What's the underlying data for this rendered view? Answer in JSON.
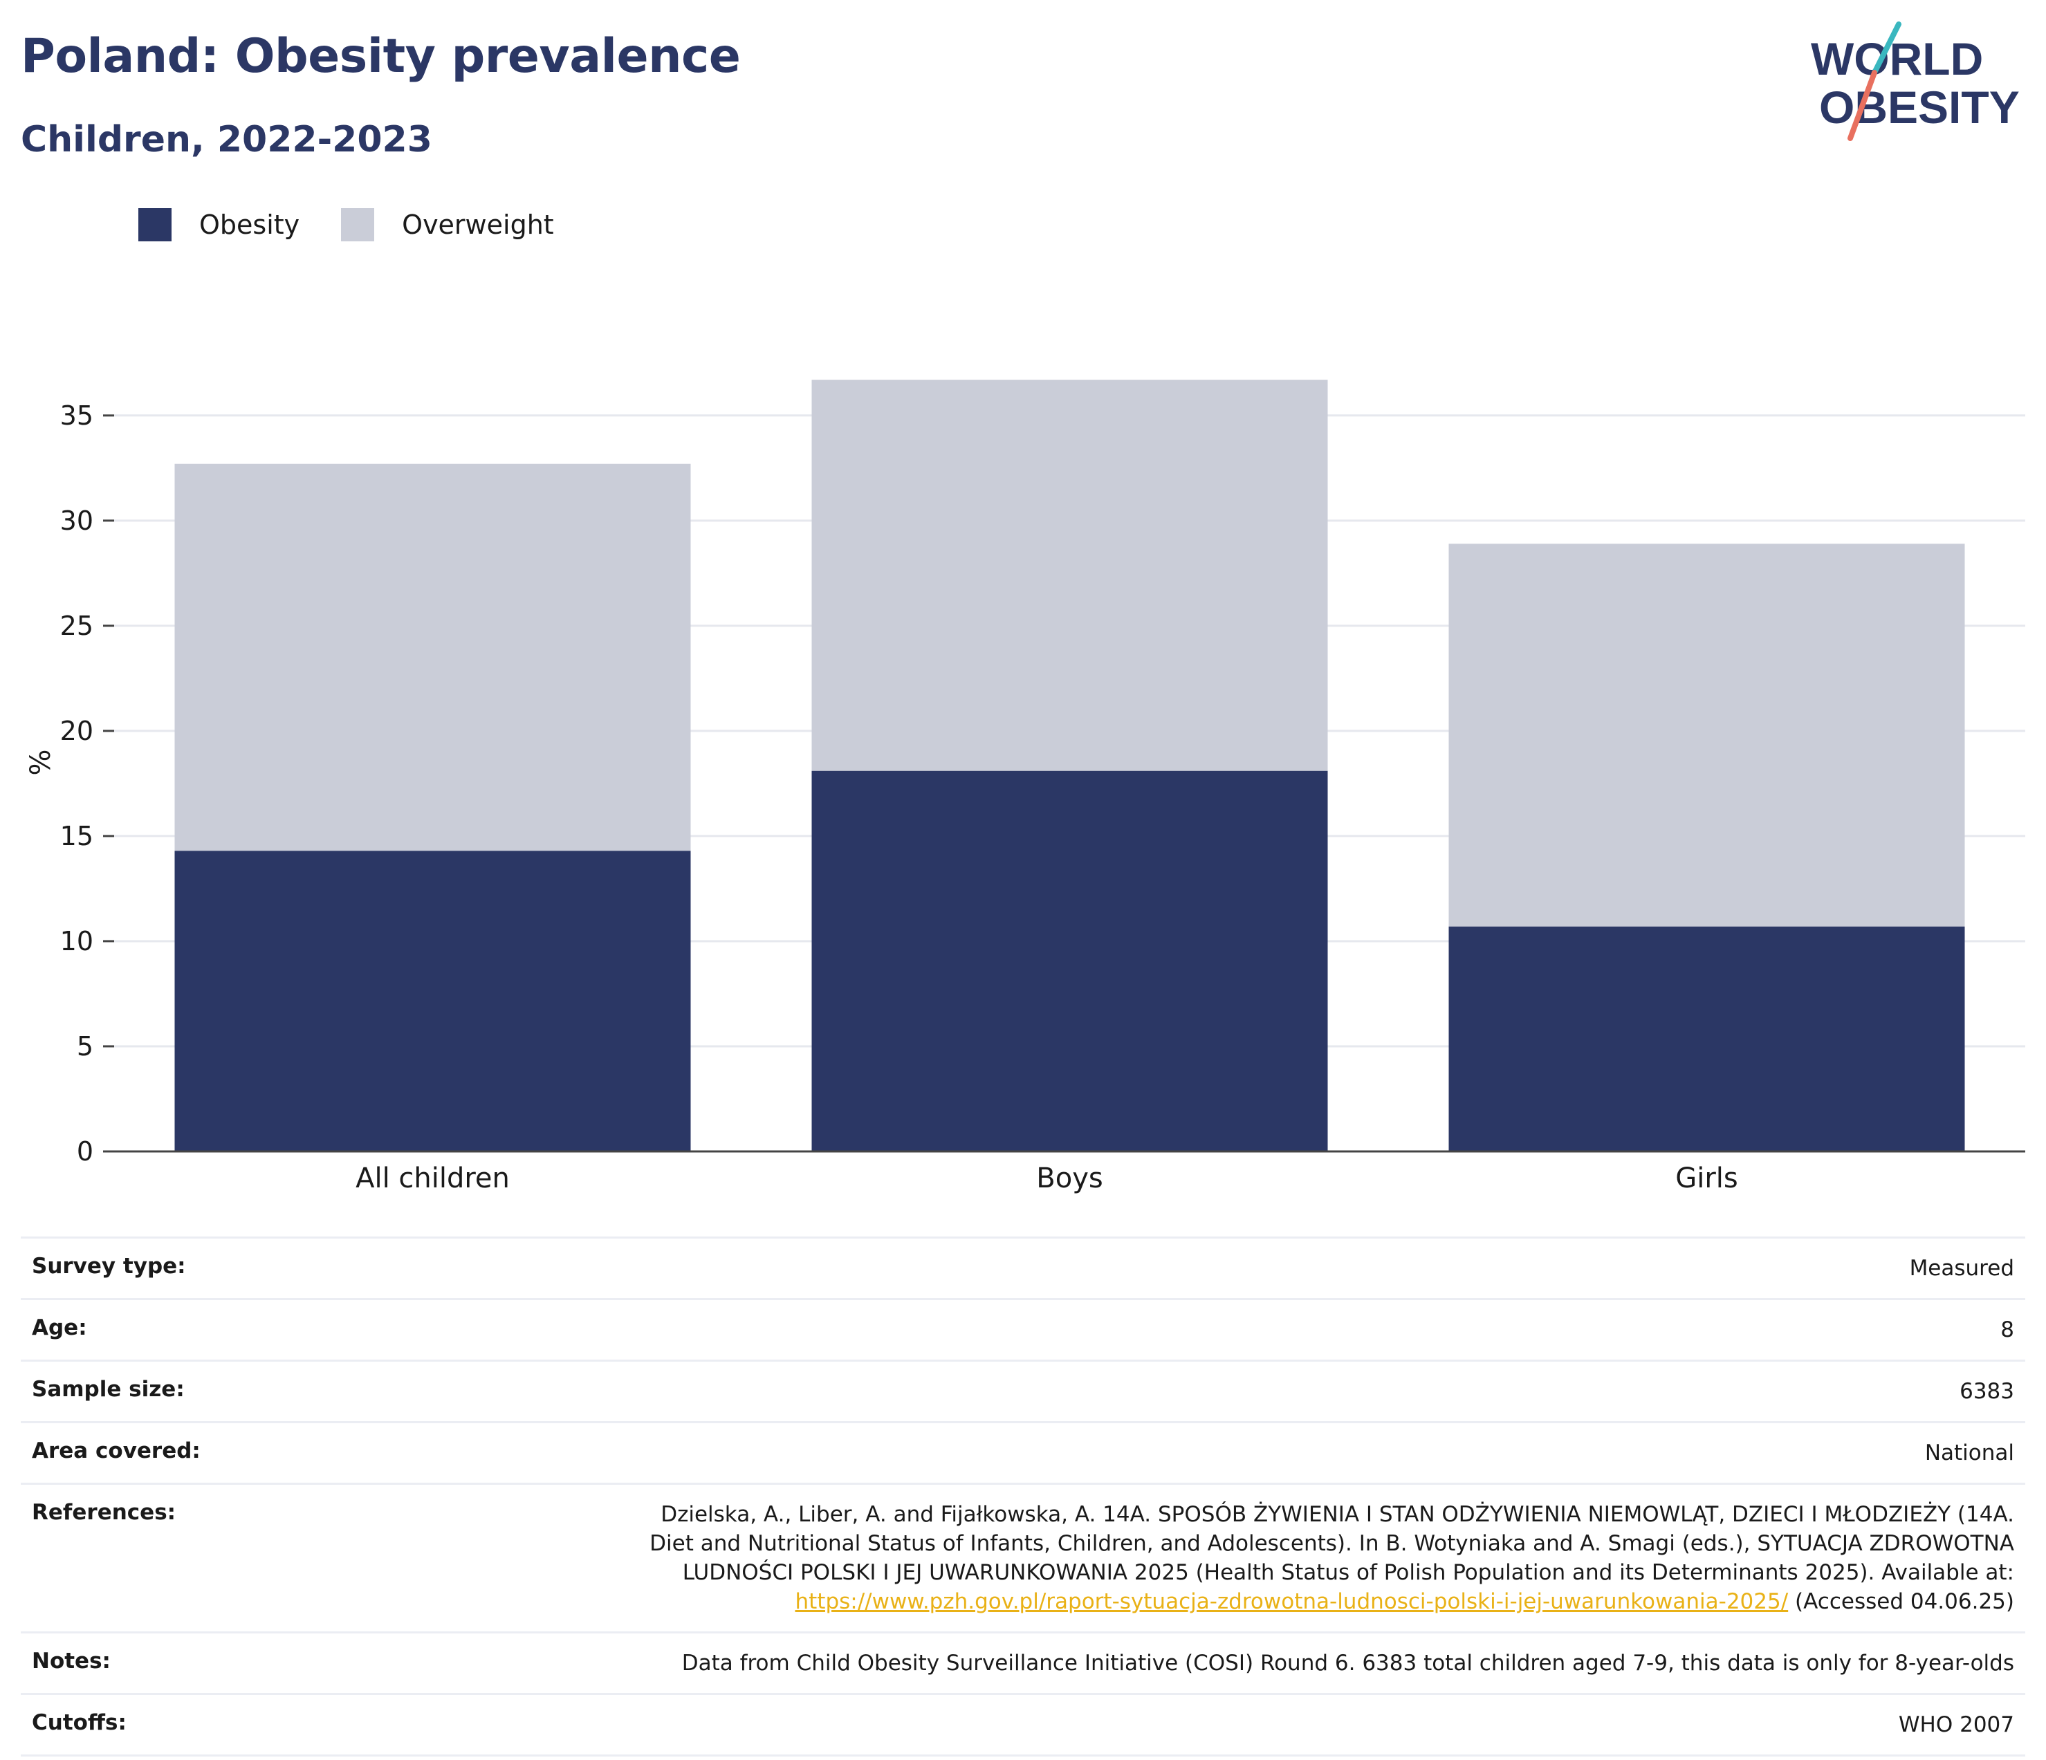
{
  "header": {
    "title": "Poland: Obesity prevalence",
    "subtitle": "Children, 2022-2023"
  },
  "logo": {
    "line1": "WORLD",
    "line2": "OBESITY",
    "colors": {
      "navy": "#2b3765",
      "teal": "#3ab7bf",
      "coral": "#e8705f"
    }
  },
  "legend": [
    {
      "label": "Obesity",
      "color": "#2b3765"
    },
    {
      "label": "Overweight",
      "color": "#cacdd8"
    }
  ],
  "chart_data": {
    "type": "bar",
    "stacked": true,
    "categories": [
      "All children",
      "Boys",
      "Girls"
    ],
    "series": [
      {
        "name": "Obesity",
        "color": "#2b3765",
        "values": [
          14.3,
          18.1,
          10.7
        ]
      },
      {
        "name": "Overweight",
        "color": "#cacdd8",
        "values": [
          18.4,
          18.6,
          18.2
        ]
      }
    ],
    "ylabel": "%",
    "xlabel": "",
    "ylim": [
      0,
      37
    ],
    "yticks": [
      0,
      5,
      10,
      15,
      20,
      25,
      30,
      35
    ],
    "grid": true,
    "legend_position": "top-left"
  },
  "info": [
    {
      "label": "Survey type:",
      "value": "Measured"
    },
    {
      "label": "Age:",
      "value": "8"
    },
    {
      "label": "Sample size:",
      "value": "6383"
    },
    {
      "label": "Area covered:",
      "value": "National"
    },
    {
      "label": "References:",
      "value_lines": [
        "Dzielska, A., Liber, A. and Fijałkowska, A. 14A. SPOSÓB ŻYWIENIA I STAN ODŻYWIENIA NIEMOWLĄT, DZIECI I MŁODZIEŻY (14A.",
        "Diet and Nutritional Status of Infants, Children, and Adolescents). In B. Wotyniaka and A. Smagi (eds.), SYTUACJA ZDROWOTNA",
        "LUDNOŚCI POLSKI I JEJ UWARUNKOWANIA 2025 (Health Status of Polish Population and its Determinants 2025). Available at:"
      ],
      "link": "https://www.pzh.gov.pl/raport-sytuacja-zdrowotna-ludnosci-polski-i-jej-uwarunkowania-2025/",
      "link_suffix": " (Accessed 04.06.25)"
    },
    {
      "label": "Notes:",
      "value": "Data from Child Obesity Surveillance Initiative (COSI) Round 6. 6383 total children aged 7-9, this data is only for 8-year-olds"
    },
    {
      "label": "Cutoffs:",
      "value": "WHO 2007"
    }
  ]
}
